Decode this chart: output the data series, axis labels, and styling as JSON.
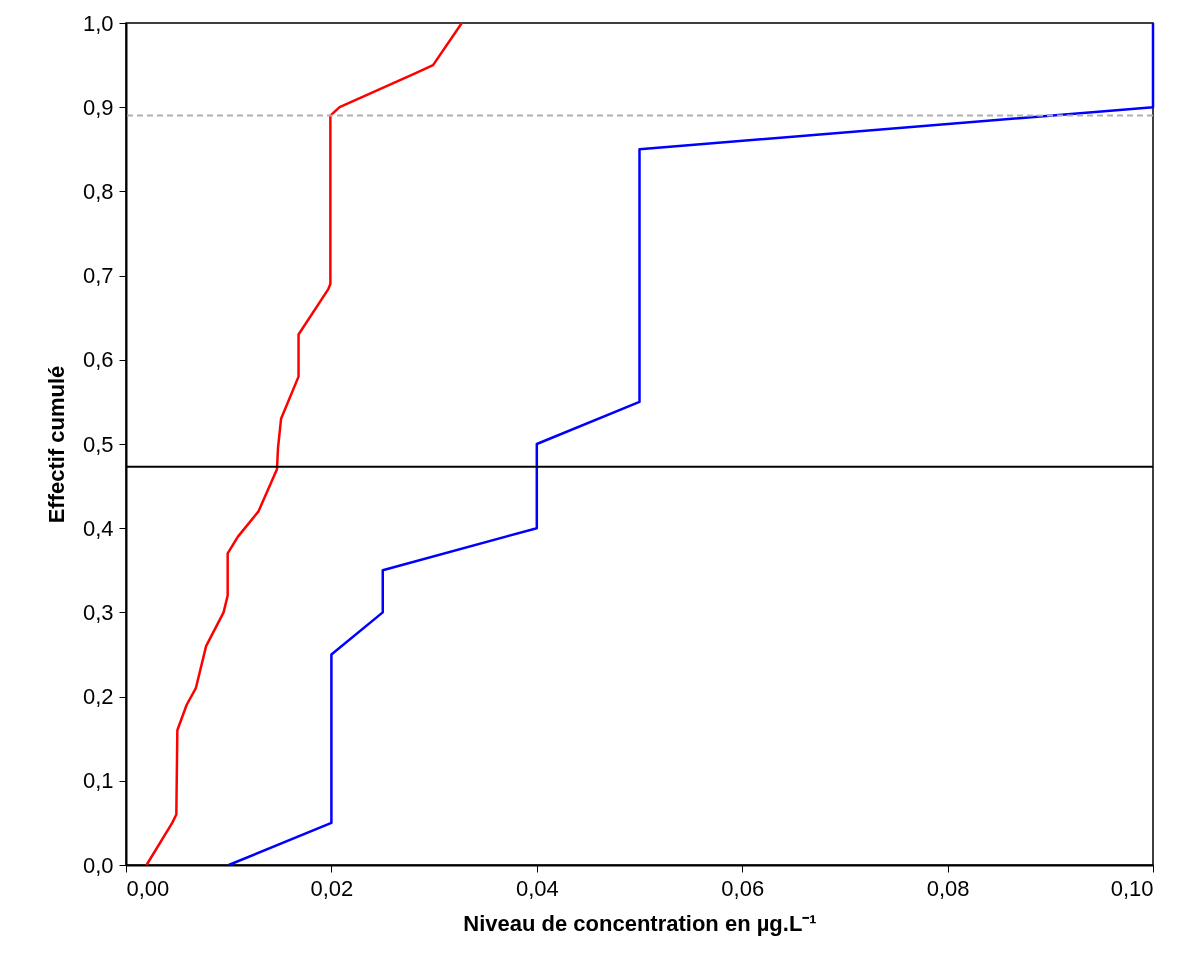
{
  "chart_data": {
    "type": "line",
    "xlabel": "Niveau de concentration en µg.L⁻¹",
    "ylabel": "Effectif cumulé",
    "series": [
      {
        "color": "#ff0000",
        "x": [
          0.002,
          0.0045,
          0.0049,
          0.005,
          0.0059,
          0.0068,
          0.0078,
          0.0095,
          0.0099,
          0.0099,
          0.0109,
          0.0129,
          0.0147,
          0.0148,
          0.0151,
          0.0168,
          0.0168,
          0.0197,
          0.0199,
          0.0199,
          0.0208,
          0.0281,
          0.0299,
          0.0327
        ],
        "values": [
          0,
          0.05,
          0.06,
          0.16,
          0.19,
          0.21,
          0.26,
          0.3,
          0.32,
          0.37,
          0.39,
          0.42,
          0.47,
          0.495,
          0.53,
          0.58,
          0.63,
          0.684,
          0.69,
          0.89,
          0.9,
          0.94,
          0.95,
          1.0
        ]
      },
      {
        "color": "#0000ff",
        "x": [
          0.01,
          0.02,
          0.02,
          0.025,
          0.025,
          0.04,
          0.04,
          0.05,
          0.05,
          0.1,
          0.1
        ],
        "values": [
          0,
          0.05,
          0.25,
          0.3,
          0.35,
          0.4,
          0.5,
          0.55,
          0.85,
          0.9,
          1.0
        ]
      }
    ],
    "xlim": [
      0,
      0.1
    ],
    "ylim": [
      0,
      1
    ],
    "xticks": [
      {
        "value": 0,
        "label": "0,00"
      },
      {
        "value": 0.02,
        "label": "0,02"
      },
      {
        "value": 0.04,
        "label": "0,04"
      },
      {
        "value": 0.06,
        "label": "0,06"
      },
      {
        "value": 0.08,
        "label": "0,08"
      },
      {
        "value": 0.1,
        "label": "0,10"
      }
    ],
    "yticks": [
      {
        "value": 0,
        "label": "0,0"
      },
      {
        "value": 0.1,
        "label": "0,1"
      },
      {
        "value": 0.2,
        "label": "0,2"
      },
      {
        "value": 0.3,
        "label": "0,3"
      },
      {
        "value": 0.4,
        "label": "0,4"
      },
      {
        "value": 0.5,
        "label": "0,5"
      },
      {
        "value": 0.6,
        "label": "0,6"
      },
      {
        "value": 0.7,
        "label": "0,7"
      },
      {
        "value": 0.8,
        "label": "0,8"
      },
      {
        "value": 0.9,
        "label": "0,9"
      },
      {
        "value": 1.0,
        "label": "1,0"
      }
    ],
    "ref_lines": [
      {
        "axis": "y",
        "value": 0.473,
        "color": "#000000",
        "line_style": "solid"
      },
      {
        "axis": "y",
        "value": 0.89,
        "color": "#b0b0b0",
        "line_style": "dashed"
      }
    ],
    "grid": false,
    "legend": false,
    "marker": "none",
    "line_style": "solid"
  }
}
